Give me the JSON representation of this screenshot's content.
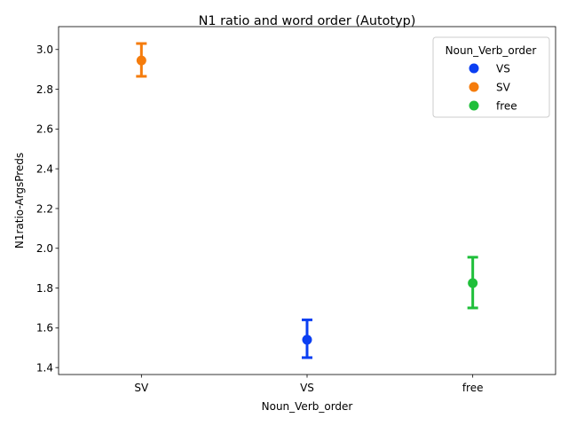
{
  "chart_data": {
    "type": "scatter",
    "title": "N1 ratio and word order (Autotyp)",
    "xlabel": "Noun_Verb_order",
    "ylabel": "N1ratio-ArgsPreds",
    "categories": [
      "SV",
      "VS",
      "free"
    ],
    "ylim": [
      1.365,
      3.115
    ],
    "yticks": [
      1.4,
      1.6,
      1.8,
      2.0,
      2.2,
      2.4,
      2.6,
      2.8,
      3.0
    ],
    "ytick_labels": [
      "1.4",
      "1.6",
      "1.8",
      "2.0",
      "2.2",
      "2.4",
      "2.6",
      "2.8",
      "3.0"
    ],
    "grid": false,
    "legend": {
      "title": "Noun_Verb_order",
      "placement": "top-right",
      "entries": [
        "VS",
        "SV",
        "free"
      ]
    },
    "series": [
      {
        "name": "VS",
        "color": "#0b3ff2",
        "category": "VS",
        "value": 1.54,
        "ci": [
          1.45,
          1.64
        ]
      },
      {
        "name": "SV",
        "color": "#f57c0c",
        "category": "SV",
        "value": 2.945,
        "ci": [
          2.865,
          3.03
        ]
      },
      {
        "name": "free",
        "color": "#1fbf3a",
        "category": "free",
        "value": 1.825,
        "ci": [
          1.7,
          1.955
        ]
      }
    ]
  }
}
